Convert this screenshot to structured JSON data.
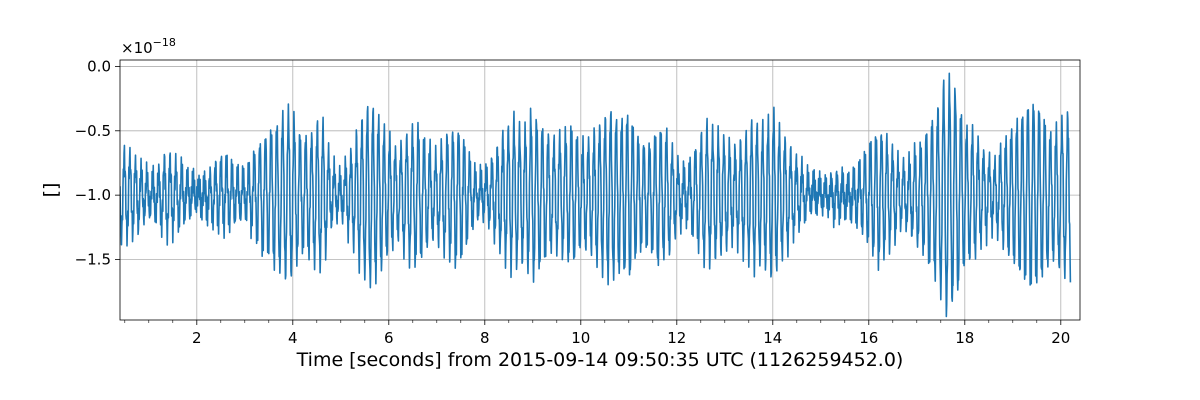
{
  "chart_data": {
    "type": "line",
    "xlabel": "Time [seconds] from 2015-09-14 09:50:35 UTC (1126259452.0)",
    "ylabel": "[]",
    "offset_text": {
      "base": "×10",
      "exponent": "−18"
    },
    "xlim": [
      0.4,
      20.4
    ],
    "ylim": [
      -1.97,
      0.05
    ],
    "x_ticks": [
      2,
      4,
      6,
      8,
      10,
      12,
      14,
      16,
      18,
      20
    ],
    "x_tick_labels": [
      "2",
      "4",
      "6",
      "8",
      "10",
      "12",
      "14",
      "16",
      "18",
      "20"
    ],
    "x_minor_step": 0.5,
    "y_ticks": [
      0.0,
      -0.5,
      -1.0,
      -1.5
    ],
    "y_tick_labels": [
      "0.0",
      "−0.5",
      "−1.0",
      "−1.5"
    ],
    "grid": true,
    "series": [
      {
        "color": "#1f77b4",
        "x": [
          0.4,
          0.55,
          0.7,
          0.85,
          1.0,
          1.2,
          1.4,
          1.6,
          1.8,
          2.0,
          2.2,
          2.4,
          2.6,
          2.8,
          3.0,
          3.2,
          3.4,
          3.6,
          3.8,
          4.0,
          4.2,
          4.4,
          4.6,
          4.8,
          5.0,
          5.2,
          5.4,
          5.6,
          5.8,
          6.0,
          6.2,
          6.4,
          6.6,
          6.8,
          7.0,
          7.2,
          7.4,
          7.6,
          7.8,
          8.0,
          8.2,
          8.4,
          8.6,
          8.8,
          9.0,
          9.2,
          9.4,
          9.6,
          9.8,
          10.0,
          10.2,
          10.4,
          10.6,
          10.8,
          11.0,
          11.2,
          11.4,
          11.6,
          11.8,
          12.0,
          12.2,
          12.4,
          12.6,
          12.8,
          13.0,
          13.2,
          13.4,
          13.6,
          13.8,
          14.0,
          14.2,
          14.4,
          14.6,
          14.8,
          15.0,
          15.2,
          15.4,
          15.6,
          15.8,
          16.0,
          16.2,
          16.4,
          16.6,
          16.8,
          17.0,
          17.2,
          17.4,
          17.6,
          17.8,
          18.0,
          18.2,
          18.4,
          18.6,
          18.8,
          19.0,
          19.2,
          19.4,
          19.6,
          19.8,
          20.0,
          20.2,
          20.4
        ],
        "amplitude": [
          0.3,
          0.3,
          0.25,
          0.2,
          0.12,
          0.2,
          0.28,
          0.22,
          0.14,
          0.08,
          0.12,
          0.2,
          0.26,
          0.18,
          0.12,
          0.3,
          0.42,
          0.5,
          0.6,
          0.58,
          0.4,
          0.45,
          0.55,
          0.22,
          0.1,
          0.3,
          0.5,
          0.68,
          0.55,
          0.4,
          0.3,
          0.45,
          0.5,
          0.35,
          0.28,
          0.4,
          0.5,
          0.38,
          0.15,
          0.12,
          0.3,
          0.45,
          0.55,
          0.45,
          0.62,
          0.5,
          0.38,
          0.42,
          0.5,
          0.35,
          0.4,
          0.52,
          0.62,
          0.55,
          0.6,
          0.42,
          0.35,
          0.5,
          0.45,
          0.22,
          0.15,
          0.35,
          0.5,
          0.45,
          0.4,
          0.3,
          0.42,
          0.52,
          0.48,
          0.6,
          0.45,
          0.3,
          0.2,
          0.1,
          0.08,
          0.12,
          0.15,
          0.1,
          0.2,
          0.35,
          0.5,
          0.4,
          0.25,
          0.2,
          0.35,
          0.45,
          0.6,
          0.88,
          0.8,
          0.5,
          0.45,
          0.3,
          0.22,
          0.35,
          0.5,
          0.6,
          0.72,
          0.62,
          0.45,
          0.52,
          0.6
        ],
        "center": -1.0,
        "frequency_hz": 8.5
      }
    ]
  }
}
